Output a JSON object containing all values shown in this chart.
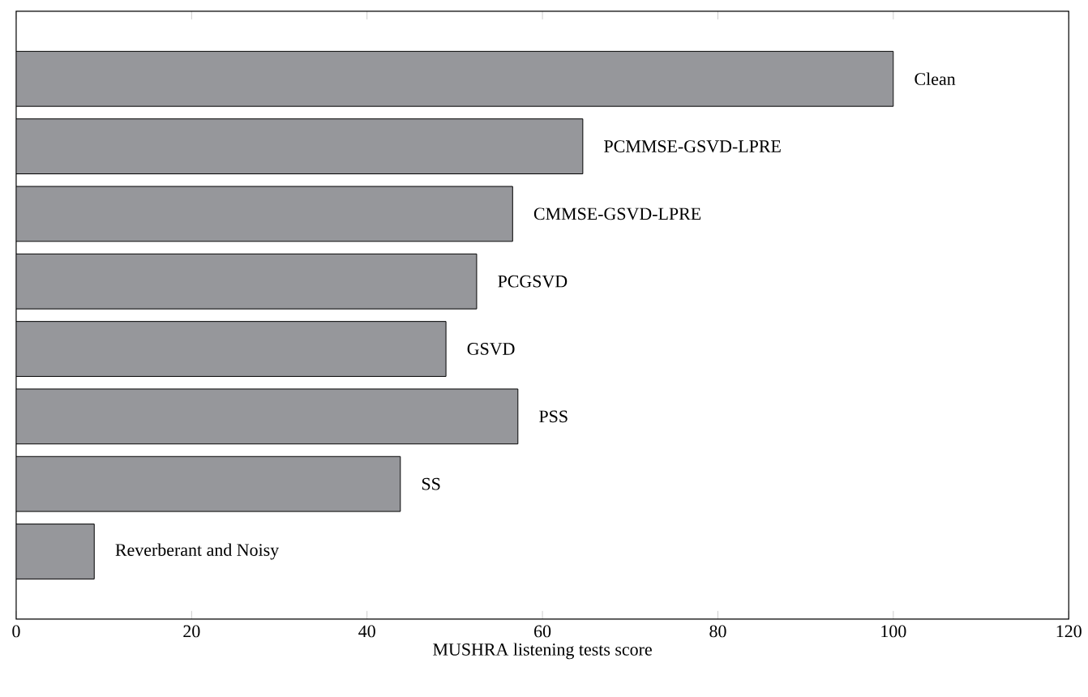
{
  "chart_data": {
    "type": "bar",
    "orientation": "horizontal",
    "xlabel": "MUSHRA listening tests score",
    "categories": [
      "Clean",
      "PCMMSE-GSVD-LPRE",
      "CMMSE-GSVD-LPRE",
      "PCGSVD",
      "GSVD",
      "PSS",
      "SS",
      "Reverberant and Noisy"
    ],
    "values": [
      100,
      64.6,
      56.6,
      52.5,
      49.0,
      57.2,
      43.8,
      8.9
    ],
    "color": "#96979b",
    "xlim": [
      0,
      120
    ],
    "xticks": [
      0,
      20,
      40,
      60,
      80,
      100,
      120
    ]
  }
}
